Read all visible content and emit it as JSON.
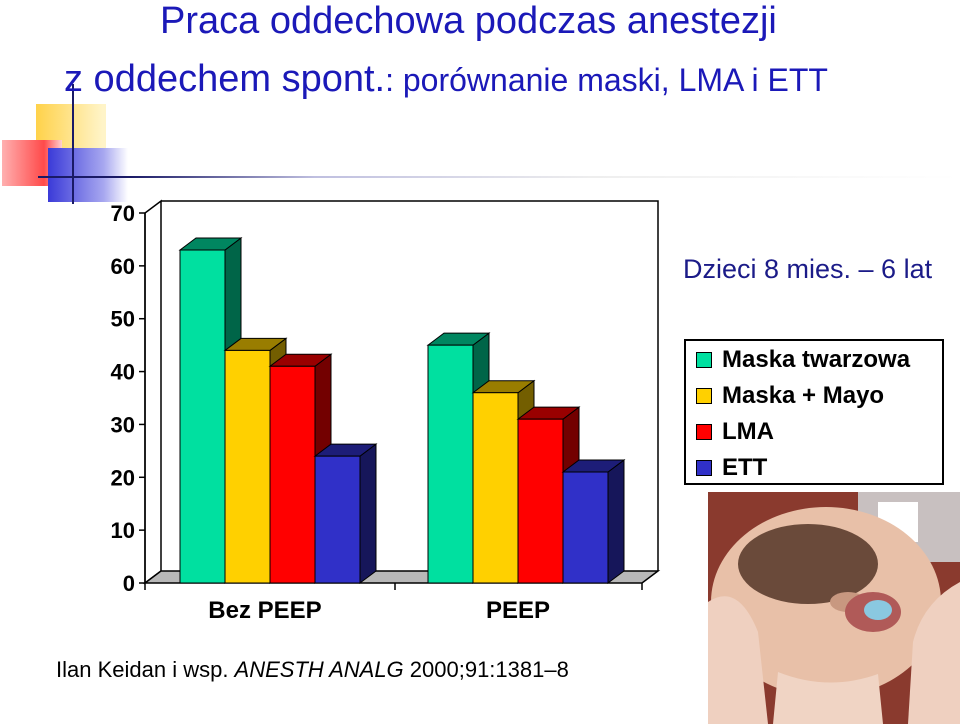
{
  "slide": {
    "title_line1": "Praca oddechowa podczas anestezji",
    "title_line2_main": "z oddechem spont.",
    "title_line2_rest": ": porównanie maski, LMA i ETT",
    "subtitle": "Dzieci 8 mies. – 6 lat",
    "citation_authors": "Ilan Keidan i wsp. ",
    "citation_journal": "ANESTH ANALG",
    "citation_ref": " 2000;91:1381–8"
  },
  "chart_data": {
    "type": "bar",
    "categories": [
      "Bez PEEP",
      "PEEP"
    ],
    "series": [
      {
        "name": "Maska twarzowa",
        "color": "#00e0a0",
        "values": [
          63,
          45
        ]
      },
      {
        "name": "Maska + Mayo",
        "color": "#ffd000",
        "values": [
          44,
          36
        ]
      },
      {
        "name": "LMA",
        "color": "#ff0000",
        "values": [
          41,
          31
        ]
      },
      {
        "name": "ETT",
        "color": "#3030c8",
        "values": [
          24,
          21
        ]
      }
    ],
    "ylim": [
      0,
      70
    ],
    "yticks": [
      "0",
      "10",
      "20",
      "30",
      "40",
      "50",
      "60",
      "70"
    ],
    "legend_position": "right",
    "style": "3d-clustered-bar"
  },
  "photo": {
    "icon": "child-face-mask-photo"
  }
}
